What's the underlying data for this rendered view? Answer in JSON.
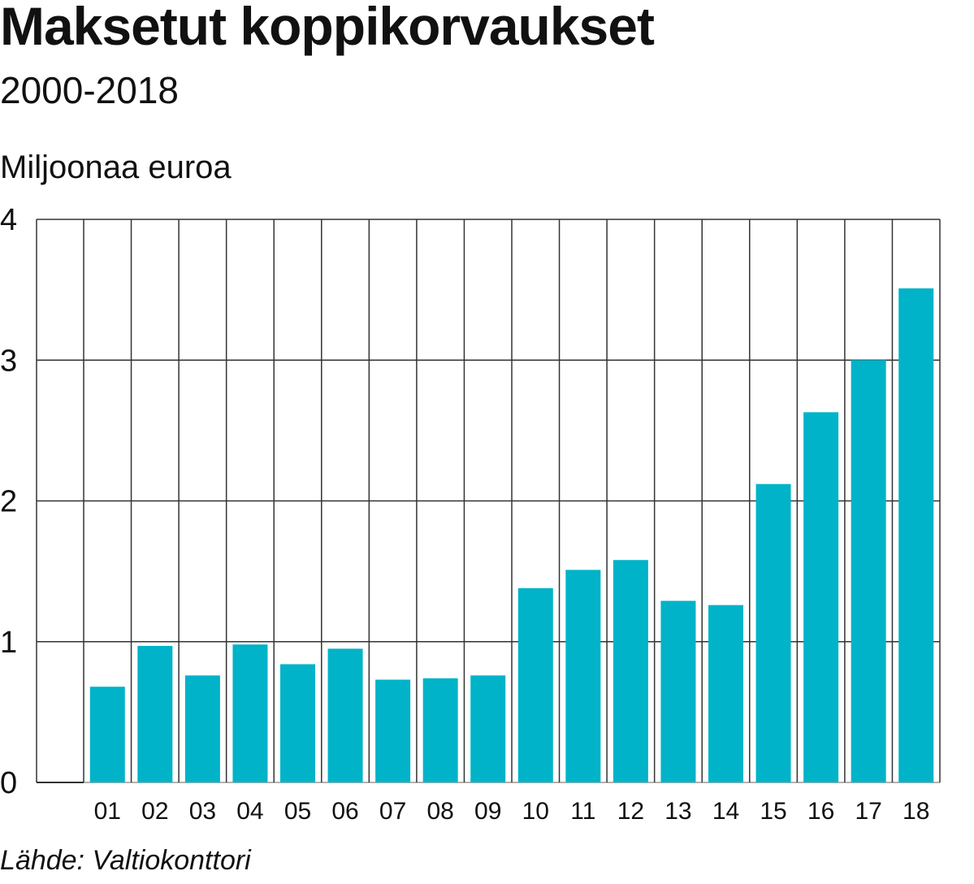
{
  "header": {
    "title": "Maksetut koppikorvaukset",
    "subtitle": "2000-2018",
    "unit": "Miljoonaa euroa"
  },
  "footer": {
    "source": "Lähde: Valtiokonttori"
  },
  "colors": {
    "bar": "#00b3c8",
    "grid": "#333333"
  },
  "chart_data": {
    "type": "bar",
    "categories": [
      "01",
      "02",
      "03",
      "04",
      "05",
      "06",
      "07",
      "08",
      "09",
      "10",
      "11",
      "12",
      "13",
      "14",
      "15",
      "16",
      "17",
      "18"
    ],
    "series": [
      {
        "values": [
          0.68,
          0.97,
          0.76,
          0.98,
          0.84,
          0.95,
          0.73,
          0.74,
          0.76,
          1.38,
          1.51,
          1.58,
          1.29,
          1.26,
          2.12,
          2.63,
          3.0,
          3.51
        ]
      }
    ],
    "yticks": [
      "0",
      "1",
      "2",
      "3",
      "4"
    ],
    "ylim": [
      0,
      4
    ],
    "grid": true,
    "legend": "none"
  }
}
